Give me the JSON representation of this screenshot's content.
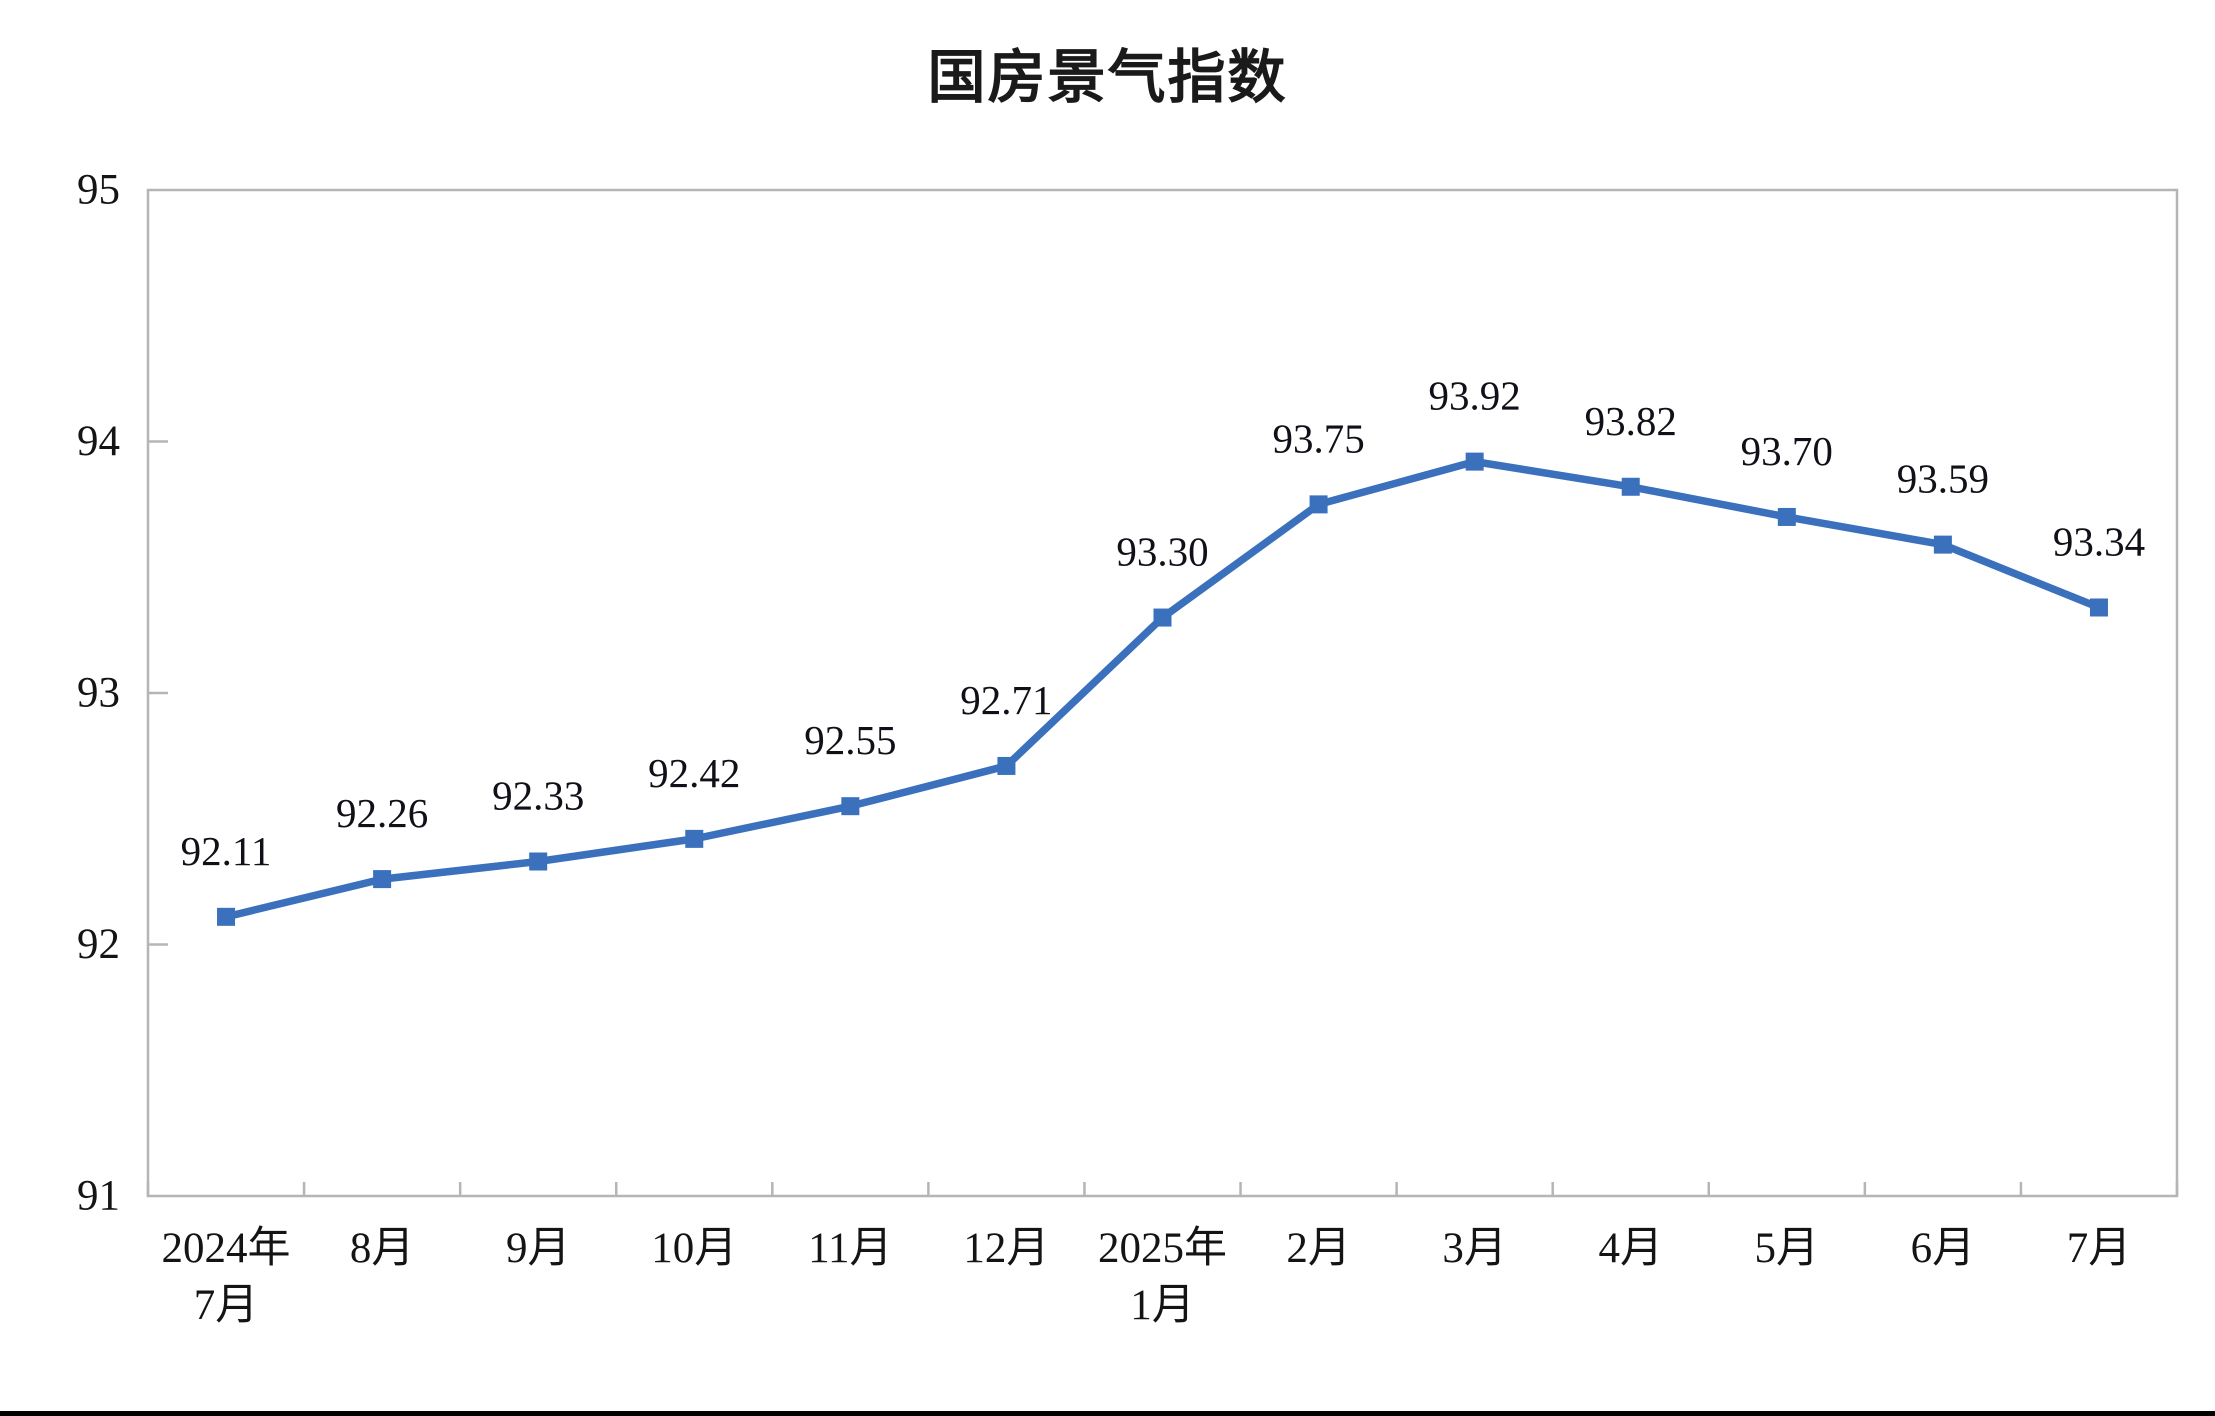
{
  "page": {
    "background_color": "#ffffff",
    "footer_bar_color": "#000000"
  },
  "chart_data": {
    "type": "line",
    "title": "国房景气指数",
    "categories": [
      "2024年\n7月",
      "8月",
      "9月",
      "10月",
      "11月",
      "12月",
      "2025年\n1月",
      "2月",
      "3月",
      "4月",
      "5月",
      "6月",
      "7月"
    ],
    "values": [
      92.11,
      92.26,
      92.33,
      92.42,
      92.55,
      92.71,
      93.3,
      93.75,
      93.92,
      93.82,
      93.7,
      93.59,
      93.34
    ],
    "data_labels": [
      "92.11",
      "92.26",
      "92.33",
      "92.42",
      "92.55",
      "92.71",
      "93.30",
      "93.75",
      "93.92",
      "93.82",
      "93.70",
      "93.59",
      "93.34"
    ],
    "y_ticks": [
      91,
      92,
      93,
      94,
      95
    ],
    "ylim": [
      91,
      95
    ],
    "xlabel": "",
    "ylabel": "",
    "grid": "off",
    "legend": "none",
    "marker": "square",
    "line_color": "#3a70bc",
    "axis_color": "#b5b5b5",
    "text_color": "#141414"
  }
}
